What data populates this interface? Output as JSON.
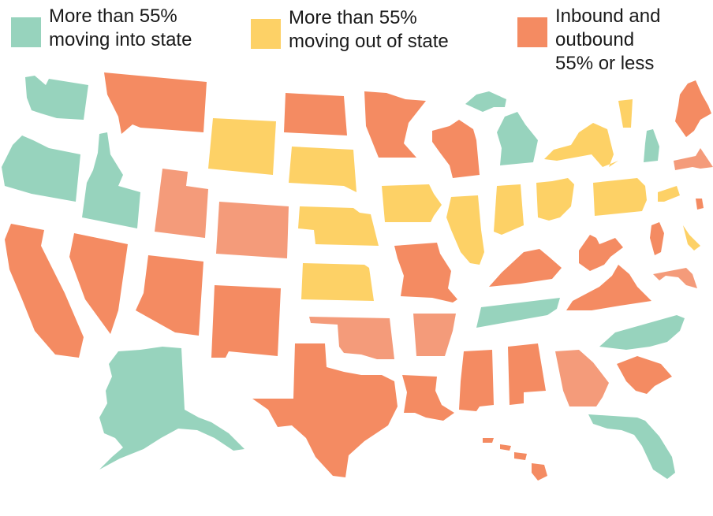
{
  "legend": {
    "into": {
      "label": "More than 55%\nmoving into state",
      "color": "#97D3BD"
    },
    "out": {
      "label": "More than 55%\nmoving out of state",
      "color": "#FDD166"
    },
    "both": {
      "label": "Inbound and\noutbound\n55% or less",
      "color": "#F48B62"
    }
  },
  "colors": {
    "into": "#97D3BD",
    "out": "#FDD166",
    "both": "#F48B62",
    "both_light": "#F49B7A"
  },
  "states": {
    "into": [
      "WA",
      "OR",
      "ID",
      "AK",
      "MI",
      "NH",
      "TN",
      "NC",
      "FL"
    ],
    "out": [
      "WY",
      "SD",
      "NE",
      "KS",
      "IA",
      "IL",
      "IN",
      "OH",
      "PA",
      "NY",
      "VT",
      "CT",
      "DE"
    ],
    "both": [
      "MT",
      "ND",
      "MN",
      "WI",
      "CA",
      "NV",
      "AZ",
      "NM",
      "TX",
      "MO",
      "LA",
      "MS",
      "AL",
      "SC",
      "KY",
      "WV",
      "VA",
      "NJ",
      "ME",
      "HI",
      "RI"
    ],
    "both_light": [
      "UT",
      "CO",
      "OK",
      "AR",
      "GA",
      "MA",
      "MD"
    ]
  }
}
